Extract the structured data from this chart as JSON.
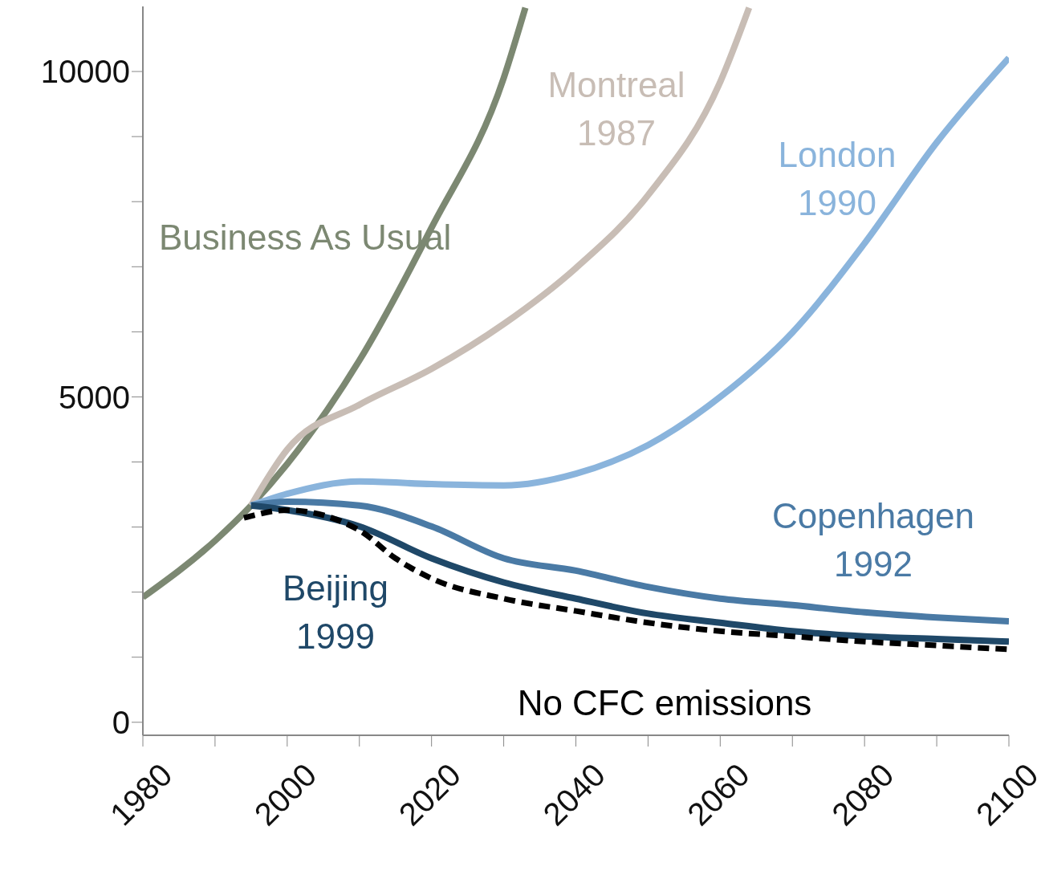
{
  "chart_data": {
    "type": "line",
    "xlim": [
      1980,
      2100
    ],
    "ylim": [
      -200,
      11000
    ],
    "xticks": [
      1980,
      {
        "value": 1990,
        "label": null
      },
      2000,
      {
        "value": 2010,
        "label": null
      },
      2020,
      {
        "value": 2030,
        "label": null
      },
      2040,
      {
        "value": 2050,
        "label": null
      },
      2060,
      {
        "value": 2070,
        "label": null
      },
      2080,
      {
        "value": 2090,
        "label": null
      },
      2100
    ],
    "yticks": [
      0,
      {
        "value": 1000,
        "label": null
      },
      {
        "value": 2000,
        "label": null
      },
      {
        "value": 3000,
        "label": null
      },
      {
        "value": 4000,
        "label": null
      },
      5000,
      {
        "value": 6000,
        "label": null
      },
      {
        "value": 7000,
        "label": null
      },
      {
        "value": 8000,
        "label": null
      },
      {
        "value": 9000,
        "label": null
      },
      10000
    ],
    "marker": "none",
    "series": [
      {
        "name": "Business As Usual",
        "color": "#7c8872",
        "x": [
          1980,
          1990,
          1995,
          2000,
          2010,
          2020,
          2030,
          2033
        ],
        "values": [
          1920,
          2790,
          3330,
          3970,
          5560,
          7600,
          9900,
          10980
        ]
      },
      {
        "name": "Montreal 1987",
        "color": "#c8bdb5",
        "x": [
          1995,
          2000,
          2010,
          2020,
          2030,
          2040,
          2050,
          2060,
          2064
        ],
        "values": [
          3330,
          4190,
          4880,
          5430,
          6120,
          6980,
          8100,
          9840,
          10980
        ]
      },
      {
        "name": "London 1990",
        "color": "#8ab4dc",
        "x": [
          1995,
          2000,
          2010,
          2020,
          2030,
          2040,
          2050,
          2060,
          2070,
          2080,
          2090,
          2100
        ],
        "values": [
          3330,
          3510,
          3700,
          3660,
          3640,
          3820,
          4260,
          5000,
          5990,
          7360,
          8910,
          10210
        ]
      },
      {
        "name": "Copenhagen 1992",
        "color": "#4a7aa5",
        "x": [
          1995,
          2000,
          2010,
          2020,
          2030,
          2040,
          2050,
          2060,
          2070,
          2080,
          2090,
          2100
        ],
        "values": [
          3330,
          3390,
          3330,
          3010,
          2520,
          2330,
          2080,
          1900,
          1800,
          1690,
          1610,
          1550
        ]
      },
      {
        "name": "Beijing 1999",
        "color": "#1f4868",
        "x": [
          1995,
          2000,
          2010,
          2020,
          2030,
          2040,
          2050,
          2060,
          2070,
          2080,
          2090,
          2100
        ],
        "values": [
          3330,
          3260,
          3010,
          2520,
          2150,
          1900,
          1670,
          1530,
          1400,
          1320,
          1280,
          1240
        ]
      },
      {
        "name": "No CFC emissions",
        "color": "#000000",
        "line_style": "dashed",
        "x": [
          1994,
          2000,
          2010,
          2015,
          2020,
          2030,
          2040,
          2050,
          2060,
          2070,
          2080,
          2090,
          2100
        ],
        "values": [
          3140,
          3260,
          2950,
          2520,
          2210,
          1900,
          1710,
          1530,
          1400,
          1320,
          1240,
          1180,
          1120
        ]
      }
    ]
  }
}
